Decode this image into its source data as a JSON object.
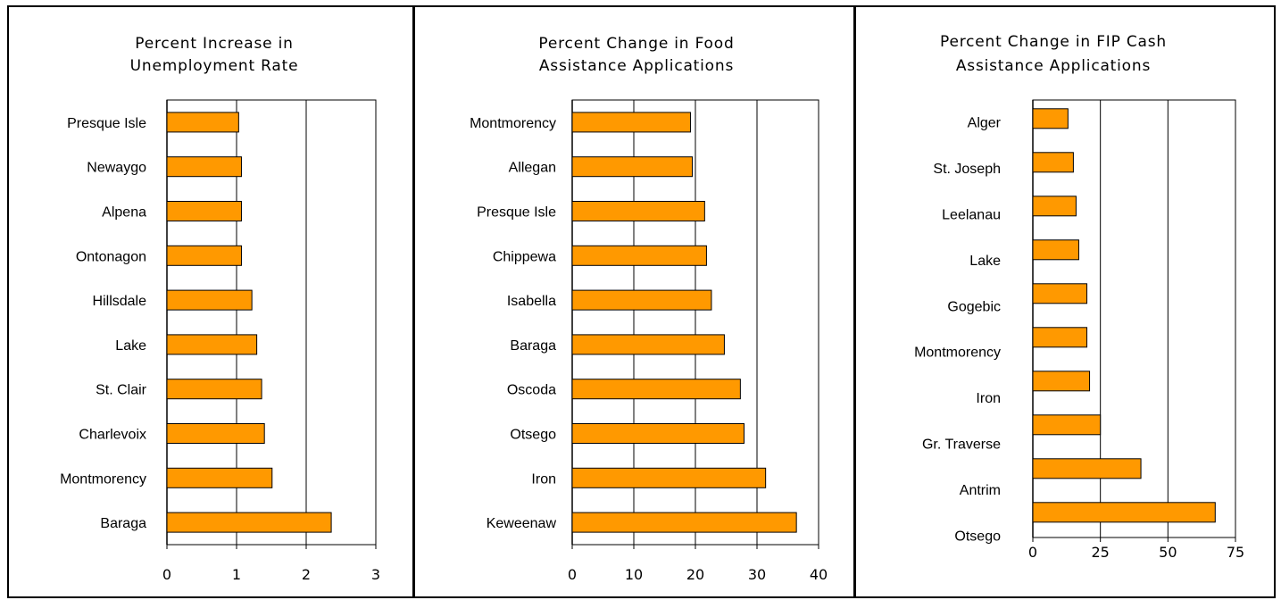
{
  "chart_data": [
    {
      "type": "bar",
      "orientation": "horizontal",
      "title": "Percent Increase in Unemployment Rate",
      "title_lines": [
        "Percent Increase in",
        "Unemployment Rate"
      ],
      "categories": [
        "Presque Isle",
        "Newaygo",
        "Alpena",
        "Ontonagon",
        "Hillsdale",
        "Lake",
        "St. Clair",
        "Charlevoix",
        "Montmorency",
        "Baraga"
      ],
      "values": [
        1.03,
        1.07,
        1.07,
        1.07,
        1.22,
        1.29,
        1.36,
        1.4,
        1.51,
        2.36
      ],
      "xlim": [
        0,
        3
      ],
      "xticks": [
        "0",
        "1",
        "2",
        "3"
      ],
      "grid": true,
      "bar_color": "#FF9900"
    },
    {
      "type": "bar",
      "orientation": "horizontal",
      "title": "Percent Change in Food Assistance Applications",
      "title_lines": [
        "Percent Change in Food",
        "Assistance Applications"
      ],
      "categories": [
        "Montmorency",
        "Allegan",
        "Presque Isle",
        "Chippewa",
        "Isabella",
        "Baraga",
        "Oscoda",
        "Otsego",
        "Iron",
        "Keweenaw"
      ],
      "values": [
        19.2,
        19.5,
        21.5,
        21.8,
        22.6,
        24.7,
        27.3,
        27.9,
        31.4,
        36.4
      ],
      "xlim": [
        0,
        40
      ],
      "xticks": [
        "0",
        "10",
        "20",
        "30",
        "40"
      ],
      "grid": true,
      "bar_color": "#FF9900"
    },
    {
      "type": "bar",
      "orientation": "horizontal",
      "title": "Percent Change in FIP Cash Assistance Applications",
      "title_lines": [
        "Percent Change in FIP Cash",
        "Assistance Applications"
      ],
      "categories": [
        "Alger",
        "St. Joseph",
        "Leelanau",
        "Lake",
        "Gogebic",
        "Montmorency",
        "Iron",
        "Gr. Traverse",
        "Antrim",
        "Otsego"
      ],
      "values": [
        13,
        15,
        16,
        17,
        20,
        20,
        21,
        25,
        40,
        67.5
      ],
      "xlim": [
        0,
        75
      ],
      "xticks": [
        "0",
        "25",
        "50",
        "75"
      ],
      "grid": true,
      "bar_color": "#FF9900"
    }
  ]
}
